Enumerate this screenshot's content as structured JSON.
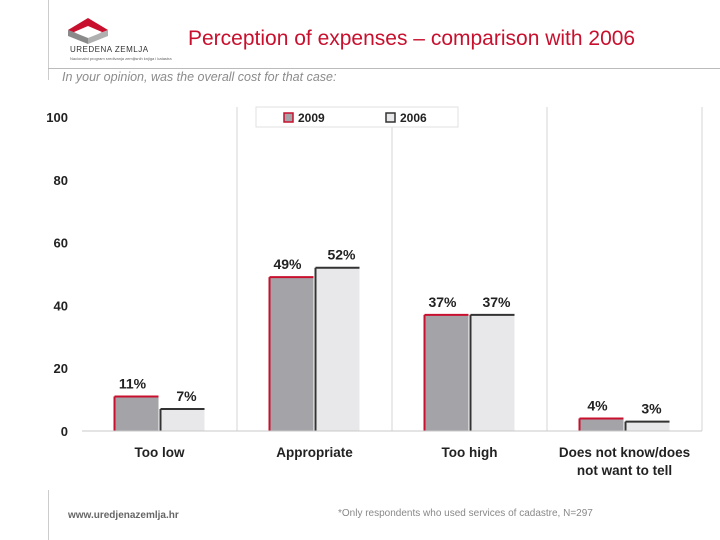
{
  "header": {
    "logo_text": "UREDENA ZEMLJA",
    "logo_sub": "Nacionalni program sredivanja zemljisnih knjiga i katastra",
    "title": "Perception of expenses – comparison with 2006",
    "subtitle": "In your opinion, was the overall cost for that case:"
  },
  "footer": {
    "url": "www.uredjenazemlja.hr",
    "note": "*Only respondents who used services of cadastre, N=297"
  },
  "colors": {
    "accent": "#c8102e",
    "series_2009_fill": "#a3a3a8",
    "series_2006_fill": "#e8e8ea",
    "series_2009_border": "#c8102e",
    "series_2006_border": "#333333"
  },
  "chart_data": {
    "type": "bar",
    "categories": [
      "Too low",
      "Appropriate",
      "Too high",
      "Does not know/does not want to tell"
    ],
    "category_lines": [
      [
        "Too low"
      ],
      [
        "Appropriate"
      ],
      [
        "Too high"
      ],
      [
        "Does not know/does",
        "not want to tell"
      ]
    ],
    "series": [
      {
        "name": "2009",
        "values": [
          11,
          49,
          37,
          4
        ],
        "labels": [
          "11%",
          "49%",
          "37%",
          "4%"
        ]
      },
      {
        "name": "2006",
        "values": [
          7,
          52,
          37,
          3
        ],
        "labels": [
          "7%",
          "52%",
          "37%",
          "3%"
        ]
      }
    ],
    "ylim": [
      0,
      100
    ],
    "yticks": [
      0,
      20,
      40,
      60,
      80,
      100
    ],
    "grid": "vertical separators between categories",
    "legend": "top-center"
  }
}
